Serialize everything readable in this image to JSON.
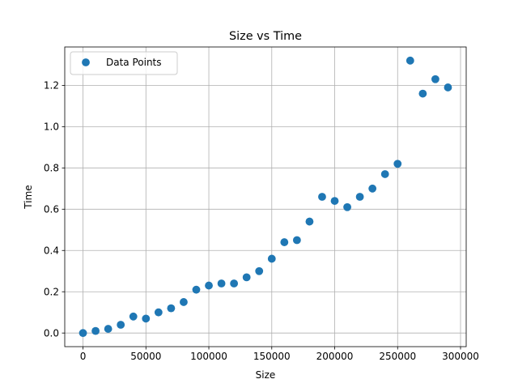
{
  "chart_data": {
    "type": "scatter",
    "title": "Size vs Time",
    "xlabel": "Size",
    "ylabel": "Time",
    "xlim": [
      -14500,
      304500
    ],
    "ylim": [
      -0.066,
      1.386
    ],
    "grid": true,
    "legend": {
      "placement": "top-left"
    },
    "x_ticks": [
      {
        "value": 0,
        "label": "0"
      },
      {
        "value": 50000,
        "label": "50000"
      },
      {
        "value": 100000,
        "label": "100000"
      },
      {
        "value": 150000,
        "label": "150000"
      },
      {
        "value": 200000,
        "label": "200000"
      },
      {
        "value": 250000,
        "label": "250000"
      },
      {
        "value": 300000,
        "label": "300000"
      }
    ],
    "y_ticks": [
      {
        "value": 0.0,
        "label": "0.0"
      },
      {
        "value": 0.2,
        "label": "0.2"
      },
      {
        "value": 0.4,
        "label": "0.4"
      },
      {
        "value": 0.6,
        "label": "0.6"
      },
      {
        "value": 0.8,
        "label": "0.8"
      },
      {
        "value": 1.0,
        "label": "1.0"
      },
      {
        "value": 1.2,
        "label": "1.2"
      }
    ],
    "series": [
      {
        "name": "Data Points",
        "color": "#1f77b4",
        "x": [
          0,
          10000,
          20000,
          30000,
          40000,
          50000,
          60000,
          70000,
          80000,
          90000,
          100000,
          110000,
          120000,
          130000,
          140000,
          150000,
          160000,
          170000,
          180000,
          190000,
          200000,
          210000,
          220000,
          230000,
          240000,
          250000,
          260000,
          270000,
          280000,
          290000
        ],
        "y": [
          0.0,
          0.01,
          0.02,
          0.04,
          0.08,
          0.07,
          0.1,
          0.12,
          0.15,
          0.21,
          0.23,
          0.24,
          0.24,
          0.27,
          0.3,
          0.36,
          0.44,
          0.45,
          0.54,
          0.66,
          0.64,
          0.61,
          0.66,
          0.7,
          0.77,
          0.82,
          1.32,
          1.16,
          1.23,
          1.19
        ]
      }
    ]
  }
}
